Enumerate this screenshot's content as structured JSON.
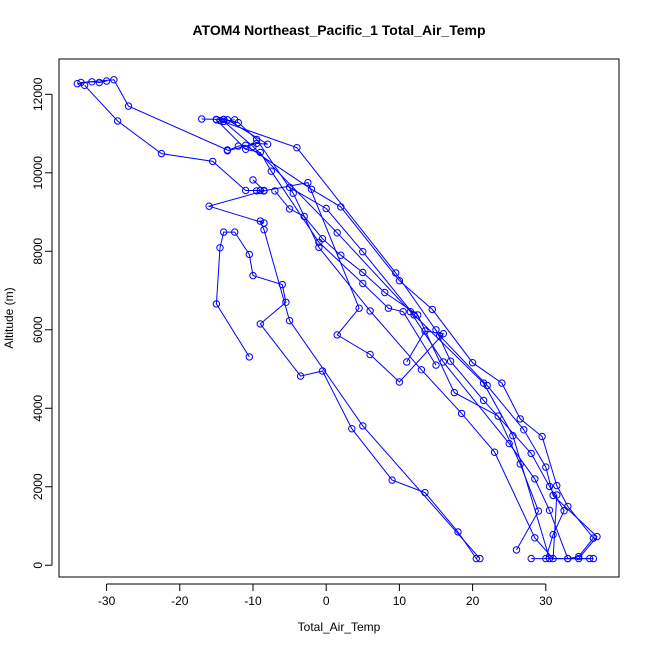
{
  "chart_data": {
    "type": "line",
    "title": "ATOM4 Northeast_Pacific_1 Total_Air_Temp",
    "xlabel": "Total_Air_Temp",
    "ylabel": "Altitude (m)",
    "xlim": [
      -36.5,
      40
    ],
    "ylim": [
      -300,
      12900
    ],
    "xticks": [
      -30,
      -20,
      -10,
      0,
      10,
      20,
      30
    ],
    "yticks": [
      0,
      2000,
      4000,
      6000,
      8000,
      10000,
      12000
    ],
    "grid": false,
    "marker": "open-circle",
    "color": "#0000ff",
    "series": [
      {
        "points": [
          [
            20.5,
            170
          ],
          [
            18,
            850
          ],
          [
            13.5,
            1850
          ],
          [
            9,
            2170
          ],
          [
            3.5,
            3480
          ],
          [
            -0.5,
            4950
          ],
          [
            -3.5,
            4820
          ],
          [
            -9,
            6150
          ],
          [
            -5.5,
            6700
          ],
          [
            -6,
            7150
          ],
          [
            -10,
            7380
          ],
          [
            -10.5,
            7920
          ],
          [
            -12.5,
            8490
          ],
          [
            -14,
            8490
          ],
          [
            -14.5,
            8090
          ],
          [
            -15,
            6660
          ],
          [
            -10.5,
            5310
          ]
        ]
      },
      {
        "points": [
          [
            21,
            170
          ],
          [
            5,
            3550
          ],
          [
            -5,
            6230
          ],
          [
            -8.5,
            8550
          ],
          [
            -9,
            8770
          ],
          [
            -8.5,
            8720
          ],
          [
            -16,
            9150
          ],
          [
            -8.5,
            9540
          ],
          [
            -2.5,
            9750
          ],
          [
            4.5,
            6550
          ],
          [
            1.5,
            5870
          ],
          [
            6,
            5370
          ],
          [
            10,
            4670
          ],
          [
            16,
            5900
          ],
          [
            13.5,
            5970
          ],
          [
            11,
            5180
          ]
        ]
      },
      {
        "points": [
          [
            26,
            390
          ],
          [
            29,
            1380
          ],
          [
            26.5,
            2580
          ],
          [
            23.5,
            3800
          ],
          [
            17.5,
            4400
          ],
          [
            12.5,
            6380
          ],
          [
            8,
            6950
          ],
          [
            5,
            7460
          ],
          [
            2,
            7900
          ],
          [
            -0.5,
            8320
          ],
          [
            -3,
            8890
          ],
          [
            -5,
            9080
          ],
          [
            -7,
            9540
          ]
        ]
      },
      {
        "points": [
          [
            -33,
            12230
          ],
          [
            -28.5,
            11320
          ],
          [
            -22.5,
            10490
          ],
          [
            -15.5,
            10290
          ],
          [
            -11,
            9550
          ],
          [
            -9,
            9550
          ],
          [
            -9.5,
            9540
          ],
          [
            -8.5,
            9550
          ],
          [
            -10,
            9820
          ]
        ]
      },
      {
        "points": [
          [
            -33.5,
            12300
          ],
          [
            -29,
            12370
          ],
          [
            -27,
            11700
          ],
          [
            -13.5,
            10580
          ]
        ]
      },
      {
        "points": [
          [
            30,
            170
          ],
          [
            31,
            780
          ],
          [
            32.5,
            1390
          ],
          [
            30.5,
            2010
          ],
          [
            28,
            2850
          ],
          [
            21.5,
            4200
          ],
          [
            17,
            5200
          ],
          [
            15,
            6000
          ]
        ]
      },
      {
        "points": [
          [
            33,
            170
          ],
          [
            34.5,
            220
          ],
          [
            36.5,
            690
          ],
          [
            33,
            1500
          ],
          [
            31.5,
            2030
          ],
          [
            29.5,
            3280
          ],
          [
            26.5,
            3730
          ],
          [
            24,
            4640
          ],
          [
            20,
            5160
          ],
          [
            14.5,
            6520
          ],
          [
            10,
            7250
          ],
          [
            2,
            9130
          ],
          [
            -2,
            9580
          ],
          [
            -11,
            10700
          ],
          [
            -12,
            10680
          ],
          [
            -13.5,
            10560
          ],
          [
            -9.5,
            10750
          ],
          [
            -8,
            10730
          ],
          [
            -13.5,
            11350
          ],
          [
            -15,
            11360
          ],
          [
            -17,
            11370
          ]
        ]
      },
      {
        "points": [
          [
            28,
            170
          ],
          [
            34.5,
            170
          ],
          [
            37,
            730
          ],
          [
            31,
            1780
          ],
          [
            30,
            2500
          ],
          [
            27,
            3450
          ],
          [
            22,
            4580
          ],
          [
            15.5,
            5850
          ],
          [
            9.5,
            7450
          ],
          [
            -4,
            10640
          ],
          [
            -14.5,
            11330
          ],
          [
            -14,
            11360
          ]
        ]
      },
      {
        "points": [
          [
            36.5,
            170
          ],
          [
            30.5,
            170
          ],
          [
            25.5,
            3300
          ],
          [
            21.5,
            4640
          ],
          [
            12,
            6380
          ],
          [
            5,
            7990
          ],
          [
            0,
            9090
          ],
          [
            -5,
            9630
          ]
        ]
      },
      {
        "points": [
          [
            31.5,
            1790
          ],
          [
            31,
            170
          ],
          [
            28.5,
            700
          ],
          [
            23,
            2880
          ],
          [
            18.5,
            3870
          ],
          [
            13,
            4980
          ],
          [
            6,
            6480
          ],
          [
            -1,
            8100
          ],
          [
            -4.5,
            9480
          ],
          [
            -9.5,
            10850
          ],
          [
            -12,
            11280
          ],
          [
            -14,
            11360
          ]
        ]
      },
      {
        "points": [
          [
            36,
            170
          ],
          [
            33,
            170
          ],
          [
            30.5,
            1400
          ],
          [
            28.5,
            2200
          ],
          [
            25,
            3100
          ],
          [
            16,
            5180
          ],
          [
            11.5,
            6460
          ],
          [
            1.5,
            8470
          ],
          [
            -10,
            10670
          ],
          [
            -14,
            11310
          ],
          [
            -12.5,
            11350
          ]
        ]
      },
      {
        "points": [
          [
            -34,
            12270
          ],
          [
            -32,
            12320
          ],
          [
            -31,
            12300
          ],
          [
            -30,
            12340
          ]
        ]
      },
      {
        "points": [
          [
            -15,
            11350
          ],
          [
            -11,
            10600
          ],
          [
            -9,
            10520
          ],
          [
            -7.5,
            10040
          ],
          [
            -1,
            8230
          ],
          [
            5,
            7180
          ],
          [
            8.5,
            6550
          ],
          [
            10.5,
            6460
          ],
          [
            15,
            5100
          ]
        ]
      }
    ]
  }
}
